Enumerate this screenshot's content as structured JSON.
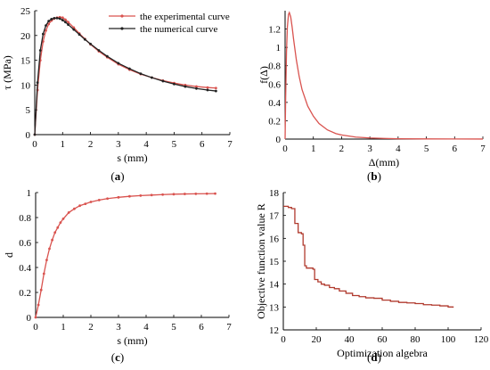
{
  "chart_data": [
    {
      "panel_label": {
        "open": "(",
        "letter": "a",
        "close": ")"
      },
      "type": "line",
      "xlabel": "s (mm)",
      "ylabel": "τ (MPa)",
      "xlim": [
        0,
        7
      ],
      "ylim": [
        0,
        25
      ],
      "xticks": [
        "0",
        "1",
        "2",
        "3",
        "4",
        "5",
        "6",
        "7"
      ],
      "yticks": [
        "0",
        "5",
        "10",
        "15",
        "20",
        "25"
      ],
      "legend_position": "top-right",
      "series": [
        {
          "name": "the experimental curve",
          "color": "#d9534f",
          "marker": "dot",
          "x": [
            0,
            0.1,
            0.2,
            0.3,
            0.4,
            0.5,
            0.6,
            0.7,
            0.8,
            0.9,
            1.0,
            1.1,
            1.2,
            1.4,
            1.6,
            1.8,
            2.0,
            2.3,
            2.6,
            3.0,
            3.4,
            3.8,
            4.2,
            4.6,
            5.0,
            5.4,
            5.8,
            6.2,
            6.5
          ],
          "y": [
            0,
            9.0,
            15.0,
            18.8,
            21.0,
            22.3,
            23.0,
            23.4,
            23.6,
            23.7,
            23.6,
            23.2,
            22.7,
            21.6,
            20.4,
            19.3,
            18.2,
            16.8,
            15.6,
            14.2,
            13.1,
            12.2,
            11.5,
            10.9,
            10.4,
            10.0,
            9.7,
            9.5,
            9.4
          ]
        },
        {
          "name": "the numerical curve",
          "color": "#222222",
          "marker": "dot",
          "x": [
            0,
            0.1,
            0.2,
            0.3,
            0.4,
            0.5,
            0.6,
            0.7,
            0.8,
            0.9,
            1.0,
            1.1,
            1.2,
            1.4,
            1.6,
            1.8,
            2.0,
            2.3,
            2.6,
            3.0,
            3.4,
            3.8,
            4.2,
            4.6,
            5.0,
            5.4,
            5.8,
            6.2,
            6.5
          ],
          "y": [
            0,
            10.5,
            17.0,
            20.3,
            22.0,
            22.9,
            23.3,
            23.5,
            23.5,
            23.4,
            23.1,
            22.7,
            22.2,
            21.2,
            20.2,
            19.2,
            18.3,
            17.0,
            15.8,
            14.4,
            13.3,
            12.3,
            11.5,
            10.8,
            10.2,
            9.7,
            9.3,
            9.0,
            8.8
          ]
        }
      ]
    },
    {
      "panel_label": {
        "open": "(",
        "letter": "b",
        "close": ")"
      },
      "type": "line",
      "xlabel": "Δ(mm)",
      "ylabel": "f(Δ)",
      "xlim": [
        0,
        7
      ],
      "ylim": [
        0,
        1.4
      ],
      "xticks": [
        "0",
        "1",
        "2",
        "3",
        "4",
        "5",
        "6",
        "7"
      ],
      "yticks": [
        "0",
        "0.2",
        "0.4",
        "0.6",
        "0.8",
        "1",
        "1.2"
      ],
      "series": [
        {
          "color": "#d9534f",
          "x": [
            0,
            0.02,
            0.05,
            0.08,
            0.12,
            0.15,
            0.2,
            0.25,
            0.3,
            0.4,
            0.5,
            0.6,
            0.8,
            1.0,
            1.2,
            1.5,
            1.8,
            2.0,
            2.5,
            3.0,
            3.5,
            4.0,
            5.0,
            6.0,
            7.0
          ],
          "y": [
            0,
            0.45,
            0.95,
            1.22,
            1.36,
            1.38,
            1.33,
            1.22,
            1.09,
            0.86,
            0.68,
            0.54,
            0.36,
            0.25,
            0.17,
            0.1,
            0.06,
            0.045,
            0.022,
            0.012,
            0.007,
            0.004,
            0.002,
            0.001,
            0.0005
          ]
        }
      ]
    },
    {
      "panel_label": {
        "open": "(",
        "letter": "c",
        "close": ")"
      },
      "type": "line",
      "xlabel": "s (mm)",
      "ylabel": "d",
      "xlim": [
        0,
        7
      ],
      "ylim": [
        0,
        1
      ],
      "xticks": [
        "0",
        "1",
        "2",
        "3",
        "4",
        "5",
        "6",
        "7"
      ],
      "yticks": [
        "0",
        "0.2",
        "0.4",
        "0.6",
        "0.8",
        "1"
      ],
      "series": [
        {
          "color": "#d9534f",
          "marker": "dot",
          "x": [
            0,
            0.1,
            0.2,
            0.3,
            0.4,
            0.5,
            0.6,
            0.7,
            0.8,
            0.9,
            1.0,
            1.2,
            1.4,
            1.6,
            1.8,
            2.0,
            2.3,
            2.6,
            3.0,
            3.4,
            3.8,
            4.2,
            4.6,
            5.0,
            5.4,
            5.8,
            6.2,
            6.5
          ],
          "y": [
            0,
            0.1,
            0.22,
            0.35,
            0.46,
            0.55,
            0.62,
            0.68,
            0.72,
            0.76,
            0.79,
            0.84,
            0.87,
            0.895,
            0.91,
            0.925,
            0.94,
            0.952,
            0.962,
            0.97,
            0.976,
            0.98,
            0.984,
            0.987,
            0.989,
            0.99,
            0.991,
            0.992
          ]
        }
      ]
    },
    {
      "panel_label": {
        "open": "(",
        "letter": "d",
        "close": ")"
      },
      "type": "line",
      "xlabel": "Optimization algebra",
      "ylabel": "Objective function value R",
      "xlim": [
        0,
        120
      ],
      "ylim": [
        12,
        18
      ],
      "xticks": [
        "0",
        "20",
        "40",
        "60",
        "80",
        "100",
        "120"
      ],
      "yticks": [
        "12",
        "13",
        "14",
        "15",
        "16",
        "17",
        "18"
      ],
      "series": [
        {
          "color": "#b03a2e",
          "step": true,
          "x": [
            0,
            3,
            5,
            7,
            9,
            11,
            12,
            13,
            14,
            16,
            18,
            19,
            21,
            23,
            25,
            28,
            31,
            34,
            38,
            42,
            46,
            50,
            55,
            60,
            65,
            70,
            75,
            80,
            85,
            90,
            95,
            100,
            103
          ],
          "y": [
            17.4,
            17.35,
            17.3,
            16.65,
            16.25,
            16.2,
            15.7,
            14.8,
            14.7,
            14.7,
            14.65,
            14.2,
            14.1,
            14.0,
            13.95,
            13.85,
            13.8,
            13.7,
            13.6,
            13.5,
            13.45,
            13.4,
            13.38,
            13.3,
            13.25,
            13.2,
            13.18,
            13.15,
            13.1,
            13.08,
            13.05,
            13.0,
            12.97
          ]
        }
      ]
    }
  ]
}
